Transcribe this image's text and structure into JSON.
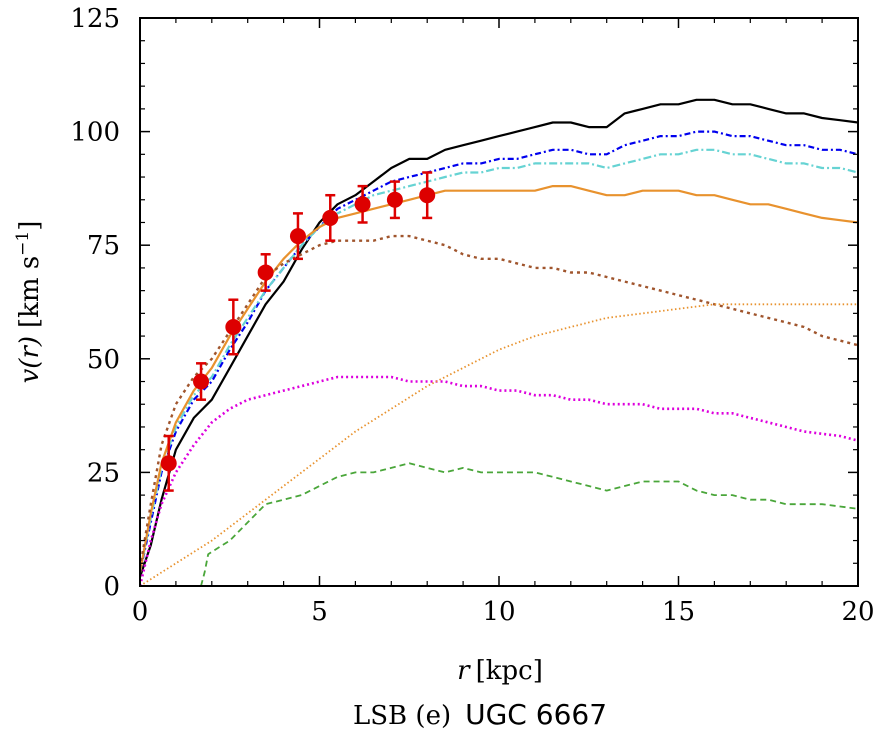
{
  "chart_data": {
    "type": "line",
    "title": "",
    "caption_prefix": "LSB (e)",
    "caption_name": "UGC 6667",
    "xlabel": {
      "italic": "r",
      "unit": "[kpc]"
    },
    "ylabel": {
      "italic": "v(r)",
      "unit": "[km s",
      "sup": "−1",
      "close": "]"
    },
    "xlim": [
      0,
      20
    ],
    "ylim": [
      0,
      125
    ],
    "xticks": [
      0,
      5,
      10,
      15,
      20
    ],
    "yticks": [
      0,
      25,
      50,
      75,
      100,
      125
    ],
    "grid": false,
    "series": [
      {
        "name": "total-black",
        "color": "#000000",
        "dash": "",
        "width": 2.2,
        "x": [
          0,
          0.3,
          0.6,
          1,
          1.5,
          2,
          2.5,
          3,
          3.5,
          4,
          4.5,
          5,
          5.5,
          6,
          6.5,
          7,
          7.5,
          8,
          8.5,
          9,
          9.5,
          10,
          10.5,
          11,
          11.5,
          12,
          12.5,
          13,
          13.5,
          14,
          14.5,
          15,
          15.5,
          16,
          16.5,
          17,
          17.5,
          18,
          18.5,
          19,
          19.5,
          20
        ],
        "y": [
          2,
          9,
          19,
          30,
          37,
          41,
          48,
          55,
          62,
          67,
          74,
          80,
          84,
          86,
          89,
          92,
          94,
          94,
          96,
          97,
          98,
          99,
          100,
          101,
          102,
          102,
          101,
          101,
          104,
          105,
          106,
          106,
          107,
          107,
          106,
          106,
          105,
          104,
          104,
          103,
          102.5,
          102
        ]
      },
      {
        "name": "blue-dashdot",
        "color": "#0000ee",
        "dash": "6,3,2,3",
        "width": 2.2,
        "x": [
          0,
          0.3,
          0.6,
          1,
          1.5,
          2,
          2.5,
          3,
          3.5,
          4,
          4.5,
          5,
          5.5,
          6,
          6.5,
          7,
          7.5,
          8,
          8.5,
          9,
          9.5,
          10,
          10.5,
          11,
          11.5,
          12,
          12.5,
          13,
          13.5,
          14,
          14.5,
          15,
          15.5,
          16,
          16.5,
          17,
          17.5,
          18,
          18.5,
          19,
          19.5,
          20
        ],
        "y": [
          3,
          14,
          25,
          34,
          41,
          45,
          52,
          58,
          65,
          70,
          75,
          79,
          83,
          85,
          87,
          89,
          90,
          91,
          92,
          93,
          93,
          94,
          94,
          95,
          96,
          96,
          95,
          95,
          97,
          98,
          99,
          99,
          100,
          100,
          99,
          99,
          98,
          97,
          97,
          96,
          96,
          95
        ]
      },
      {
        "name": "cyan-dashdot",
        "color": "#66d3d3",
        "dash": "8,3,2,3",
        "width": 2.2,
        "x": [
          0,
          0.3,
          0.6,
          1,
          1.5,
          2,
          2.5,
          3,
          3.5,
          4,
          4.5,
          5,
          5.5,
          6,
          6.5,
          7,
          7.5,
          8,
          8.5,
          9,
          9.5,
          10,
          10.5,
          11,
          11.5,
          12,
          12.5,
          13,
          13.5,
          14,
          14.5,
          15,
          15.5,
          16,
          16.5,
          17,
          17.5,
          18,
          18.5,
          19,
          19.5,
          20
        ],
        "y": [
          3,
          15,
          26,
          35,
          42,
          46,
          53,
          59,
          65,
          70,
          75,
          79,
          82,
          84,
          86,
          87,
          88,
          89,
          90,
          91,
          91,
          92,
          92,
          93,
          93,
          93,
          93,
          92,
          93,
          94,
          95,
          95,
          96,
          96,
          95,
          95,
          94,
          93,
          93,
          92,
          92,
          91
        ]
      },
      {
        "name": "orange-solid",
        "color": "#e8922e",
        "dash": "",
        "width": 2.2,
        "x": [
          0,
          0.3,
          0.6,
          1,
          1.5,
          2,
          2.5,
          3,
          3.5,
          4,
          4.5,
          5,
          5.5,
          6,
          6.5,
          7,
          7.5,
          8,
          8.5,
          9,
          9.5,
          10,
          10.5,
          11,
          11.5,
          12,
          12.5,
          13,
          13.5,
          14,
          14.5,
          15,
          15.5,
          16,
          16.5,
          17,
          17.5,
          18,
          18.5,
          19,
          19.5,
          20
        ],
        "y": [
          3,
          16,
          27,
          36,
          43,
          48,
          55,
          61,
          67,
          72,
          76,
          79,
          81,
          82,
          83,
          84,
          85,
          86,
          87,
          87,
          87,
          87,
          87,
          87,
          88,
          88,
          87,
          86,
          86,
          87,
          87,
          87,
          86,
          86,
          85,
          84,
          84,
          83,
          82,
          81,
          80.5,
          80
        ]
      },
      {
        "name": "brown-dotted",
        "color": "#a0552d",
        "dash": "3,4",
        "width": 2.4,
        "x": [
          0,
          0.3,
          0.6,
          1,
          1.5,
          2,
          2.5,
          3,
          3.5,
          4,
          4.5,
          5,
          5.5,
          6,
          6.5,
          7,
          7.5,
          8,
          8.5,
          9,
          9.5,
          10,
          10.5,
          11,
          11.5,
          12,
          12.5,
          13,
          13.5,
          14,
          14.5,
          15,
          15.5,
          16,
          16.5,
          17,
          17.5,
          18,
          18.5,
          19,
          19.5,
          20
        ],
        "y": [
          4,
          18,
          31,
          40,
          46,
          50,
          56,
          62,
          68,
          71,
          73,
          75,
          76,
          76,
          76,
          77,
          77,
          76,
          75,
          73,
          72,
          72,
          71,
          70,
          70,
          69,
          69,
          68,
          67,
          66,
          65,
          64,
          63,
          62,
          61,
          60,
          59,
          58,
          57,
          55,
          54,
          53
        ]
      },
      {
        "name": "magenta-dotted",
        "color": "#dd00dd",
        "dash": "2,3",
        "width": 2.6,
        "x": [
          0,
          0.3,
          0.6,
          1,
          1.5,
          2,
          2.5,
          3,
          3.5,
          4,
          4.5,
          5,
          5.5,
          6,
          6.5,
          7,
          7.5,
          8,
          8.5,
          9,
          9.5,
          10,
          10.5,
          11,
          11.5,
          12,
          12.5,
          13,
          13.5,
          14,
          14.5,
          15,
          15.5,
          16,
          16.5,
          17,
          17.5,
          18,
          18.5,
          19,
          19.5,
          20
        ],
        "y": [
          0,
          10,
          18,
          25,
          31,
          36,
          39,
          41,
          42,
          43,
          44,
          45,
          46,
          46,
          46,
          46,
          45,
          45,
          45,
          44,
          44,
          43,
          43,
          42,
          42,
          41,
          41,
          40,
          40,
          40,
          39,
          39,
          39,
          38,
          38,
          37,
          36,
          35,
          34,
          33.5,
          33,
          32
        ]
      },
      {
        "name": "green-dashed",
        "color": "#4aa63a",
        "dash": "6,4",
        "width": 1.8,
        "x": [
          1.7,
          1.8,
          1.9,
          2.1,
          2.5,
          3,
          3.5,
          4,
          4.5,
          5,
          5.5,
          6,
          6.5,
          7,
          7.5,
          8,
          8.5,
          9,
          9.5,
          10,
          10.5,
          11,
          11.5,
          12,
          12.5,
          13,
          13.5,
          14,
          14.5,
          15,
          15.5,
          16,
          16.5,
          17,
          17.5,
          18,
          18.5,
          19,
          19.5,
          20
        ],
        "y": [
          0,
          3,
          7,
          8,
          10,
          14,
          18,
          19,
          20,
          22,
          24,
          25,
          25,
          26,
          27,
          26,
          25,
          26,
          25,
          25,
          25,
          25,
          24,
          23,
          22,
          21,
          22,
          23,
          23,
          23,
          21,
          20,
          20,
          19,
          19,
          18,
          18,
          18,
          17.5,
          17
        ]
      },
      {
        "name": "orange-dotted",
        "color": "#e8922e",
        "dash": "1.5,2.5",
        "width": 1.8,
        "x": [
          0,
          1,
          2,
          3,
          4,
          5,
          6,
          7,
          8,
          9,
          10,
          11,
          12,
          13,
          14,
          15,
          16,
          17,
          18,
          19,
          20
        ],
        "y": [
          0,
          5,
          10,
          16,
          22,
          28,
          34,
          39,
          44,
          48,
          52,
          55,
          57,
          59,
          60,
          61,
          62,
          62,
          62,
          62,
          62
        ]
      }
    ],
    "observed": {
      "name": "data-points",
      "color": "#dd0000",
      "x": [
        0.8,
        1.7,
        2.6,
        3.5,
        4.4,
        5.3,
        6.2,
        7.1,
        8.0
      ],
      "y": [
        27,
        45,
        57,
        69,
        77,
        81,
        84,
        85,
        86
      ],
      "err": [
        6,
        4,
        6,
        4,
        5,
        5,
        4,
        4,
        5
      ]
    }
  }
}
